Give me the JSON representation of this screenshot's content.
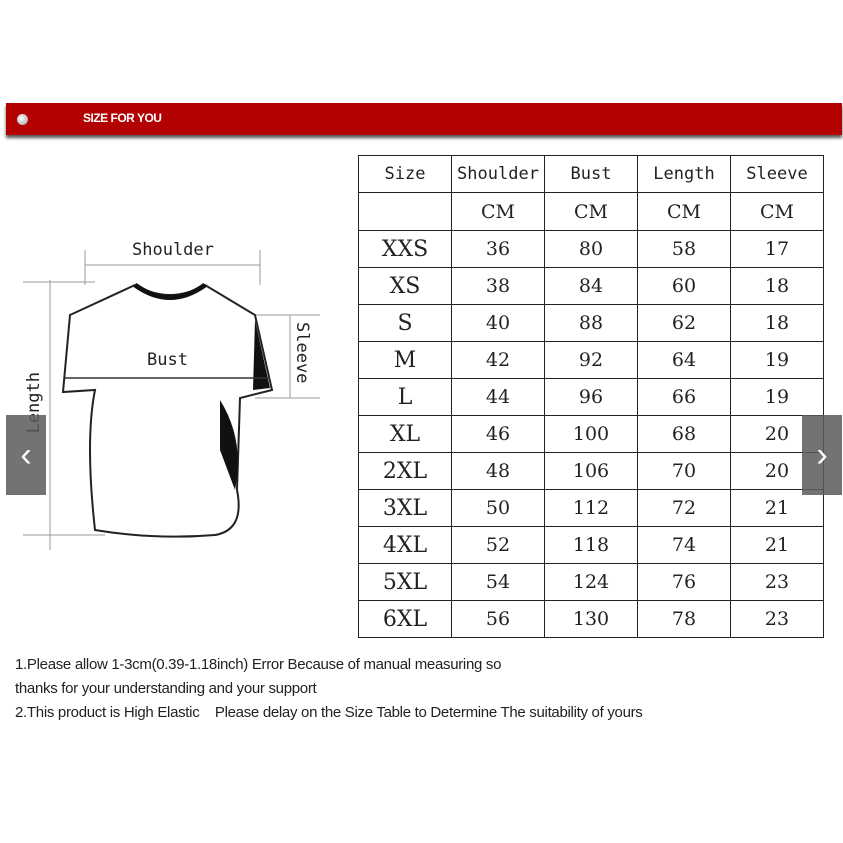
{
  "banner": {
    "title": "SIZE FOR YOU"
  },
  "diagram": {
    "shoulder": "Shoulder",
    "bust": "Bust",
    "sleeve": "Sleeve",
    "length": "Length"
  },
  "table": {
    "headers": [
      "Size",
      "Shoulder",
      "Bust",
      "Length",
      "Sleeve"
    ],
    "units": [
      "",
      "CM",
      "CM",
      "CM",
      "CM"
    ],
    "rows": [
      [
        "XXS",
        "36",
        "80",
        "58",
        "17"
      ],
      [
        "XS",
        "38",
        "84",
        "60",
        "18"
      ],
      [
        "S",
        "40",
        "88",
        "62",
        "18"
      ],
      [
        "M",
        "42",
        "92",
        "64",
        "19"
      ],
      [
        "L",
        "44",
        "96",
        "66",
        "19"
      ],
      [
        "XL",
        "46",
        "100",
        "68",
        "20"
      ],
      [
        "2XL",
        "48",
        "106",
        "70",
        "20"
      ],
      [
        "3XL",
        "50",
        "112",
        "72",
        "21"
      ],
      [
        "4XL",
        "52",
        "118",
        "74",
        "21"
      ],
      [
        "5XL",
        "54",
        "124",
        "76",
        "23"
      ],
      [
        "6XL",
        "56",
        "130",
        "78",
        "23"
      ]
    ]
  },
  "notes": [
    "1.Please allow 1-3cm(0.39-1.18inch) Error Because of manual measuring so",
    "thanks for your understanding and your support",
    "2.This product is High Elastic    Please delay on the Size Table to Determine The suitability of yours"
  ],
  "carousel": {
    "prev": "‹",
    "next": "›"
  }
}
